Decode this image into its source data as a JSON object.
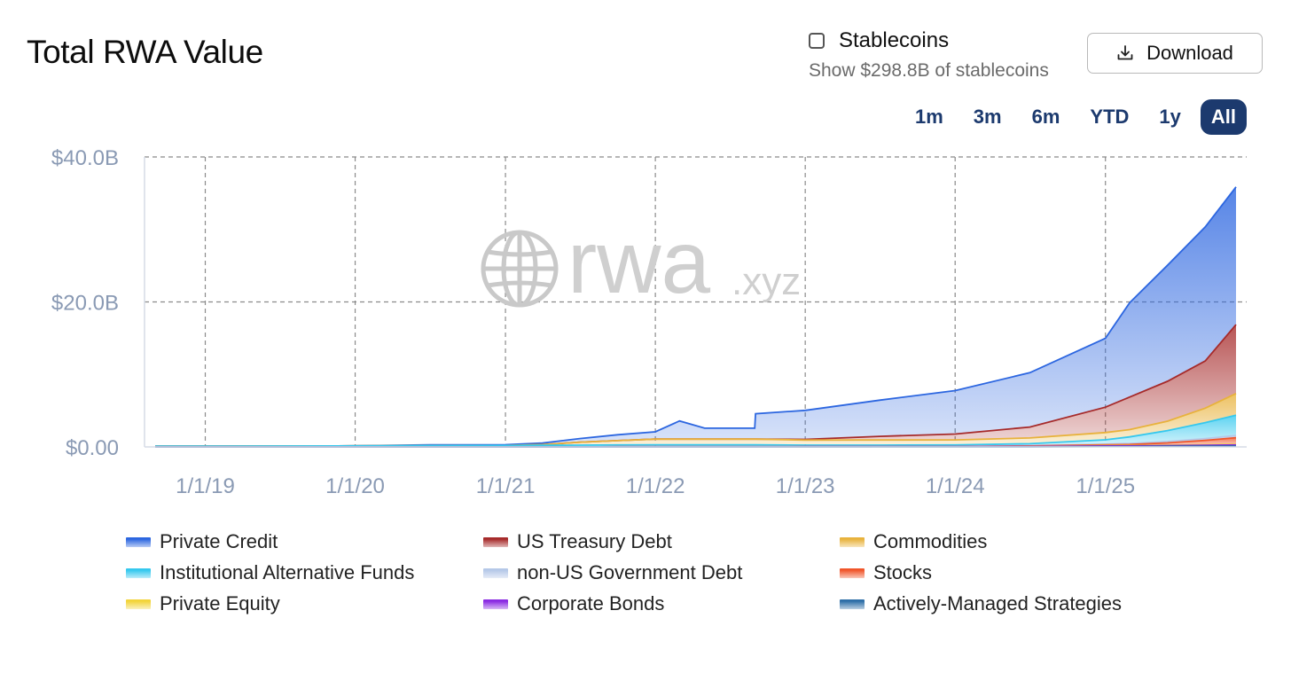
{
  "header": {
    "title": "Total RWA Value",
    "stablecoins_label": "Stablecoins",
    "stablecoins_sub": "Show $298.8B of stablecoins",
    "stablecoins_checked": false,
    "download_label": "Download"
  },
  "ranges": [
    {
      "label": "1m",
      "active": false
    },
    {
      "label": "3m",
      "active": false
    },
    {
      "label": "6m",
      "active": false
    },
    {
      "label": "YTD",
      "active": false
    },
    {
      "label": "1y",
      "active": false
    },
    {
      "label": "All",
      "active": true
    }
  ],
  "watermark": {
    "brand": "rwa",
    "suffix": ".xyz"
  },
  "chart_data": {
    "type": "area",
    "stacked": true,
    "title": "Total RWA Value",
    "x": [
      "2018-09-01",
      "2019-01-01",
      "2019-07-01",
      "2020-01-01",
      "2020-07-01",
      "2021-01-01",
      "2021-04-01",
      "2021-07-01",
      "2021-10-01",
      "2022-01-01",
      "2022-03-01",
      "2022-05-01",
      "2022-08-31",
      "2022-09-02",
      "2023-01-01",
      "2023-07-01",
      "2024-01-01",
      "2024-07-01",
      "2025-01-01",
      "2025-03-01",
      "2025-06-01",
      "2025-09-01",
      "2025-11-15"
    ],
    "series": [
      {
        "name": "Actively-Managed Strategies",
        "color": "#2f6fa8",
        "values": [
          0,
          0,
          0,
          0,
          0,
          0,
          0,
          0,
          0,
          0,
          0,
          0,
          0,
          0,
          0,
          0,
          0,
          0,
          0.05,
          0.05,
          0.08,
          0.1,
          0.12
        ]
      },
      {
        "name": "Corporate Bonds",
        "color": "#8a2be2",
        "values": [
          0,
          0,
          0,
          0,
          0,
          0,
          0,
          0,
          0.02,
          0.03,
          0.03,
          0.03,
          0.03,
          0.03,
          0.04,
          0.05,
          0.05,
          0.06,
          0.08,
          0.08,
          0.1,
          0.12,
          0.15
        ]
      },
      {
        "name": "Private Equity",
        "color": "#f2d43a",
        "values": [
          0,
          0,
          0,
          0,
          0,
          0,
          0,
          0,
          0,
          0,
          0,
          0,
          0,
          0,
          0,
          0,
          0,
          0.03,
          0.05,
          0.05,
          0.07,
          0.08,
          0.1
        ]
      },
      {
        "name": "Stocks",
        "color": "#f0552a",
        "values": [
          0,
          0,
          0,
          0,
          0,
          0,
          0,
          0,
          0,
          0,
          0,
          0,
          0,
          0,
          0,
          0,
          0,
          0.05,
          0.1,
          0.15,
          0.3,
          0.6,
          0.9
        ]
      },
      {
        "name": "non-US Government Debt",
        "color": "#b5c8e8",
        "values": [
          0,
          0,
          0,
          0,
          0,
          0,
          0,
          0,
          0,
          0,
          0,
          0,
          0,
          0,
          0,
          0,
          0.02,
          0.05,
          0.1,
          0.15,
          0.2,
          0.25,
          0.3
        ]
      },
      {
        "name": "Institutional Alternative Funds",
        "color": "#35c8ee",
        "values": [
          0.1,
          0.1,
          0.12,
          0.15,
          0.18,
          0.2,
          0.22,
          0.25,
          0.25,
          0.25,
          0.25,
          0.25,
          0.25,
          0.25,
          0.2,
          0.2,
          0.2,
          0.25,
          0.6,
          0.9,
          1.5,
          2.2,
          2.8
        ]
      },
      {
        "name": "Commodities",
        "color": "#e8b23c",
        "values": [
          0,
          0,
          0,
          0,
          0,
          0,
          0.1,
          0.4,
          0.6,
          0.8,
          0.8,
          0.8,
          0.8,
          0.8,
          0.7,
          0.7,
          0.7,
          0.8,
          1.0,
          1.0,
          1.3,
          2.0,
          3.0
        ]
      },
      {
        "name": "US Treasury Debt",
        "color": "#a62a2a",
        "values": [
          0,
          0,
          0,
          0,
          0,
          0,
          0,
          0,
          0,
          0,
          0,
          0,
          0,
          0,
          0.1,
          0.5,
          0.8,
          1.5,
          3.5,
          4.5,
          5.5,
          6.5,
          9.5
        ]
      },
      {
        "name": "Private Credit",
        "color": "#2c66e0",
        "values": [
          0,
          0,
          0,
          0,
          0.1,
          0.1,
          0.2,
          0.5,
          0.8,
          1.0,
          2.5,
          1.5,
          1.5,
          3.5,
          4.0,
          5.0,
          6.0,
          7.5,
          9.5,
          13.0,
          16.0,
          18.5,
          19.0
        ]
      }
    ],
    "xlabel": "",
    "ylabel": "",
    "ylim": [
      0,
      40
    ],
    "y_unit": "B",
    "y_ticks": [
      {
        "value": 0,
        "label": "$0.00"
      },
      {
        "value": 20,
        "label": "$20.0B"
      },
      {
        "value": 40,
        "label": "$40.0B"
      }
    ],
    "x_ticks": [
      {
        "date": "2019-01-01",
        "label": "1/1/19"
      },
      {
        "date": "2020-01-01",
        "label": "1/1/20"
      },
      {
        "date": "2021-01-01",
        "label": "1/1/21"
      },
      {
        "date": "2022-01-01",
        "label": "1/1/22"
      },
      {
        "date": "2023-01-01",
        "label": "1/1/23"
      },
      {
        "date": "2024-01-01",
        "label": "1/1/24"
      },
      {
        "date": "2025-01-01",
        "label": "1/1/25"
      }
    ],
    "grid": true,
    "legend_position": "bottom"
  },
  "legend": [
    {
      "label": "Private Credit",
      "color": "#2c66e0"
    },
    {
      "label": "US Treasury Debt",
      "color": "#a62a2a"
    },
    {
      "label": "Commodities",
      "color": "#e8b23c"
    },
    {
      "label": "Institutional Alternative Funds",
      "color": "#35c8ee"
    },
    {
      "label": "non-US Government Debt",
      "color": "#b5c8e8"
    },
    {
      "label": "Stocks",
      "color": "#f0552a"
    },
    {
      "label": "Private Equity",
      "color": "#f2d43a"
    },
    {
      "label": "Corporate Bonds",
      "color": "#8a2be2"
    },
    {
      "label": "Actively-Managed Strategies",
      "color": "#2f6fa8"
    }
  ]
}
